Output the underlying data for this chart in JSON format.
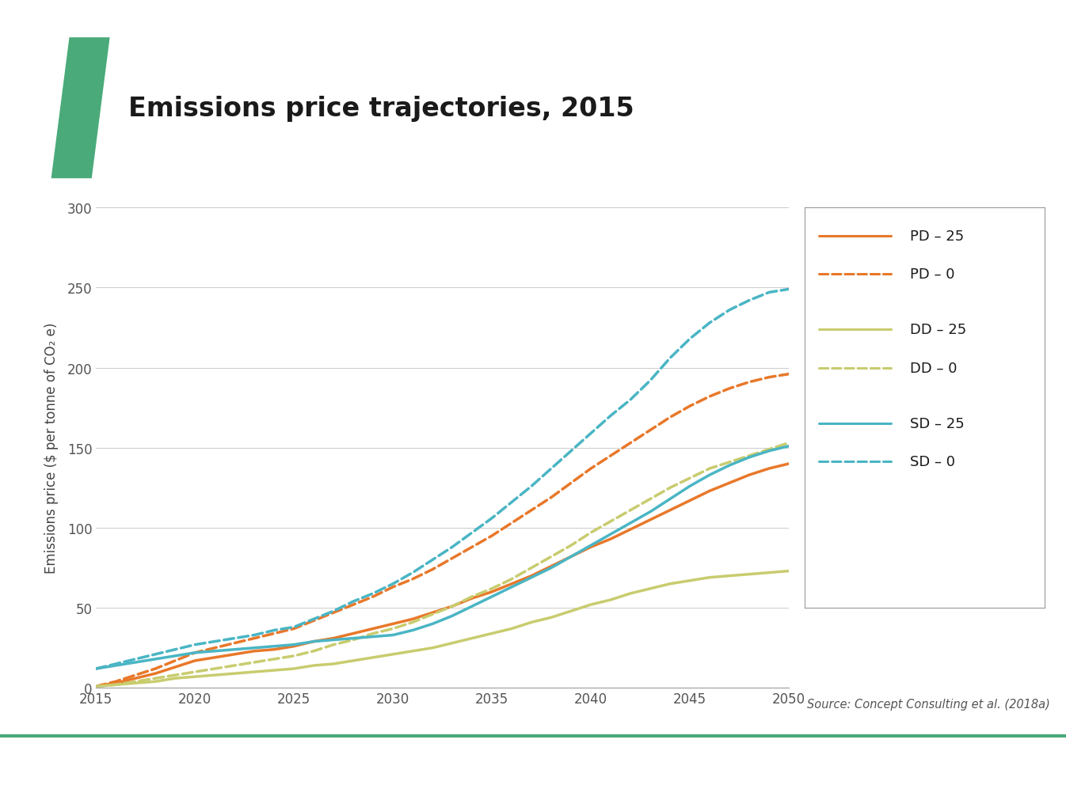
{
  "title": "Emissions price trajectories, 2015",
  "ylabel": "Emissions price ($ per tonne of CO₂ e)",
  "xlim": [
    2015,
    2050
  ],
  "ylim": [
    0,
    300
  ],
  "yticks": [
    0,
    50,
    100,
    150,
    200,
    250,
    300
  ],
  "xticks": [
    2015,
    2020,
    2025,
    2030,
    2035,
    2040,
    2045,
    2050
  ],
  "source_text": "Source: Concept Consulting et al. (2018a)",
  "background_color": "#ffffff",
  "title_color": "#1a1a1a",
  "title_fontsize": 24,
  "axis_label_fontsize": 12,
  "tick_fontsize": 12,
  "legend_fontsize": 13,
  "parallelogram_color": "#4aaa7a",
  "green_line_color": "#4aaa7a",
  "series": [
    {
      "label": "PD – 25",
      "color": "#e8782a",
      "linestyle": "solid",
      "linewidth": 2.5,
      "x": [
        2015,
        2016,
        2017,
        2018,
        2019,
        2020,
        2021,
        2022,
        2023,
        2024,
        2025,
        2026,
        2027,
        2028,
        2029,
        2030,
        2031,
        2032,
        2033,
        2034,
        2035,
        2036,
        2037,
        2038,
        2039,
        2040,
        2041,
        2042,
        2043,
        2044,
        2045,
        2046,
        2047,
        2048,
        2049,
        2050
      ],
      "y": [
        1,
        3,
        6,
        9,
        13,
        17,
        19,
        21,
        23,
        24,
        26,
        29,
        31,
        34,
        37,
        40,
        43,
        47,
        51,
        56,
        60,
        65,
        70,
        76,
        82,
        88,
        93,
        99,
        105,
        111,
        117,
        123,
        128,
        133,
        137,
        140
      ]
    },
    {
      "label": "PD – 0",
      "color": "#e8782a",
      "linestyle": "dashed",
      "linewidth": 2.5,
      "x": [
        2015,
        2016,
        2017,
        2018,
        2019,
        2020,
        2021,
        2022,
        2023,
        2024,
        2025,
        2026,
        2027,
        2028,
        2029,
        2030,
        2031,
        2032,
        2033,
        2034,
        2035,
        2036,
        2037,
        2038,
        2039,
        2040,
        2041,
        2042,
        2043,
        2044,
        2045,
        2046,
        2047,
        2048,
        2049,
        2050
      ],
      "y": [
        1,
        4,
        8,
        12,
        17,
        22,
        25,
        28,
        31,
        34,
        37,
        42,
        47,
        52,
        57,
        63,
        68,
        74,
        81,
        88,
        95,
        103,
        111,
        119,
        128,
        137,
        145,
        153,
        161,
        169,
        176,
        182,
        187,
        191,
        194,
        196
      ]
    },
    {
      "label": "DD – 25",
      "color": "#c8cc6e",
      "linestyle": "solid",
      "linewidth": 2.5,
      "x": [
        2015,
        2016,
        2017,
        2018,
        2019,
        2020,
        2021,
        2022,
        2023,
        2024,
        2025,
        2026,
        2027,
        2028,
        2029,
        2030,
        2031,
        2032,
        2033,
        2034,
        2035,
        2036,
        2037,
        2038,
        2039,
        2040,
        2041,
        2042,
        2043,
        2044,
        2045,
        2046,
        2047,
        2048,
        2049,
        2050
      ],
      "y": [
        1,
        2,
        3,
        4,
        6,
        7,
        8,
        9,
        10,
        11,
        12,
        14,
        15,
        17,
        19,
        21,
        23,
        25,
        28,
        31,
        34,
        37,
        41,
        44,
        48,
        52,
        55,
        59,
        62,
        65,
        67,
        69,
        70,
        71,
        72,
        73
      ]
    },
    {
      "label": "DD – 0",
      "color": "#c8cc6e",
      "linestyle": "dashed",
      "linewidth": 2.5,
      "x": [
        2015,
        2016,
        2017,
        2018,
        2019,
        2020,
        2021,
        2022,
        2023,
        2024,
        2025,
        2026,
        2027,
        2028,
        2029,
        2030,
        2031,
        2032,
        2033,
        2034,
        2035,
        2036,
        2037,
        2038,
        2039,
        2040,
        2041,
        2042,
        2043,
        2044,
        2045,
        2046,
        2047,
        2048,
        2049,
        2050
      ],
      "y": [
        1,
        2,
        4,
        6,
        8,
        10,
        12,
        14,
        16,
        18,
        20,
        23,
        27,
        30,
        34,
        37,
        41,
        46,
        51,
        57,
        62,
        68,
        75,
        82,
        89,
        97,
        104,
        111,
        118,
        125,
        131,
        137,
        141,
        145,
        149,
        153
      ]
    },
    {
      "label": "SD – 25",
      "color": "#4ab5c4",
      "linestyle": "solid",
      "linewidth": 2.5,
      "x": [
        2015,
        2016,
        2017,
        2018,
        2019,
        2020,
        2021,
        2022,
        2023,
        2024,
        2025,
        2026,
        2027,
        2028,
        2029,
        2030,
        2031,
        2032,
        2033,
        2034,
        2035,
        2036,
        2037,
        2038,
        2039,
        2040,
        2041,
        2042,
        2043,
        2044,
        2045,
        2046,
        2047,
        2048,
        2049,
        2050
      ],
      "y": [
        12,
        14,
        16,
        18,
        20,
        22,
        23,
        24,
        25,
        26,
        27,
        29,
        30,
        31,
        32,
        33,
        36,
        40,
        45,
        51,
        57,
        63,
        69,
        75,
        82,
        89,
        96,
        103,
        110,
        118,
        126,
        133,
        139,
        144,
        148,
        151
      ]
    },
    {
      "label": "SD – 0",
      "color": "#4ab5c4",
      "linestyle": "dashed",
      "linewidth": 2.5,
      "x": [
        2015,
        2016,
        2017,
        2018,
        2019,
        2020,
        2021,
        2022,
        2023,
        2024,
        2025,
        2026,
        2027,
        2028,
        2029,
        2030,
        2031,
        2032,
        2033,
        2034,
        2035,
        2036,
        2037,
        2038,
        2039,
        2040,
        2041,
        2042,
        2043,
        2044,
        2045,
        2046,
        2047,
        2048,
        2049,
        2050
      ],
      "y": [
        12,
        15,
        18,
        21,
        24,
        27,
        29,
        31,
        33,
        36,
        38,
        43,
        48,
        54,
        59,
        65,
        72,
        80,
        88,
        97,
        106,
        116,
        126,
        137,
        148,
        159,
        170,
        180,
        192,
        206,
        218,
        228,
        236,
        242,
        247,
        249
      ]
    }
  ]
}
